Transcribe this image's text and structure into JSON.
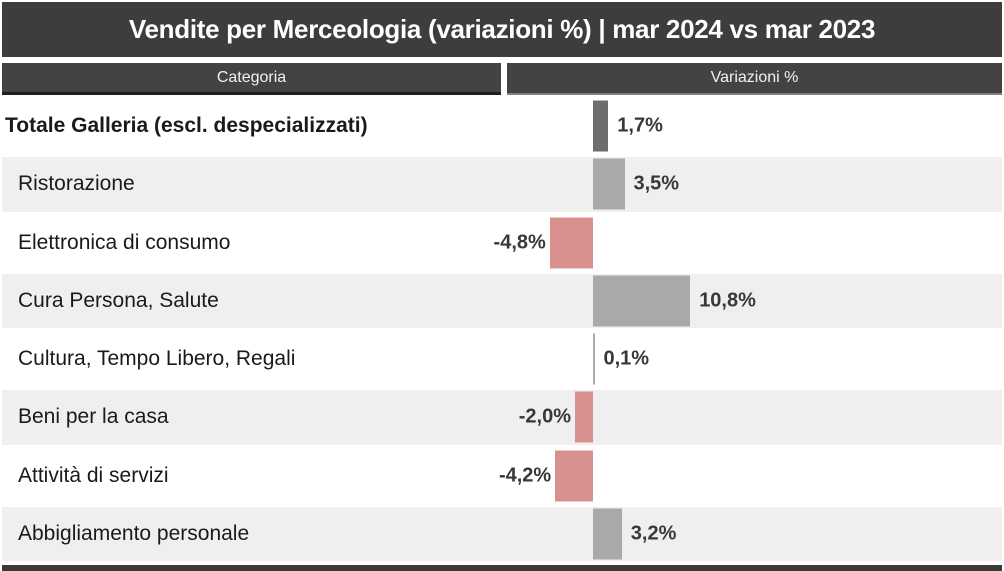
{
  "title": "Vendite per Merceologia (variazioni %) | mar 2024 vs mar 2023",
  "header": {
    "category": "Categoria",
    "value": "Variazioni %"
  },
  "colors": {
    "title_bg": "#3d3d3d",
    "header_bg": "#434343",
    "alt_row_bg": "#efefef",
    "bar_total": "#6d6d6d",
    "bar_positive": "#a9a9a9",
    "bar_negative": "#d9918f",
    "category_text": "#1a1a1a",
    "value_text": "#383838"
  },
  "chart_data": {
    "type": "bar",
    "orientation": "horizontal",
    "title": "Vendite per Merceologia (variazioni %) | mar 2024 vs mar 2023",
    "xlabel": "Variazioni %",
    "ylabel": "Categoria",
    "unit": "%",
    "baseline": 0,
    "grid": false,
    "legend": false,
    "categories": [
      "Totale Galleria (escl. despecializzati)",
      "Ristorazione",
      "Elettronica di consumo",
      "Cura Persona, Salute",
      "Cultura, Tempo Libero, Regali",
      "Beni per la casa",
      "Attività di servizi",
      "Abbigliamento personale"
    ],
    "values": [
      1.7,
      3.5,
      -4.8,
      10.8,
      0.1,
      -2.0,
      -4.2,
      3.2
    ],
    "value_labels": [
      "1,7%",
      "3,5%",
      "-4,8%",
      "10,8%",
      "0,1%",
      "-2,0%",
      "-4,2%",
      "3,2%"
    ],
    "rows": [
      {
        "label": "Totale Galleria (escl. despecializzati)",
        "value": 1.7,
        "display": "1,7%",
        "emphasis": true,
        "bar_color": "#6d6d6d"
      },
      {
        "label": "Ristorazione",
        "value": 3.5,
        "display": "3,5%",
        "emphasis": false,
        "bar_color": "#a9a9a9"
      },
      {
        "label": "Elettronica di consumo",
        "value": -4.8,
        "display": "-4,8%",
        "emphasis": false,
        "bar_color": "#d9918f"
      },
      {
        "label": "Cura Persona, Salute",
        "value": 10.8,
        "display": "10,8%",
        "emphasis": false,
        "bar_color": "#a9a9a9"
      },
      {
        "label": "Cultura, Tempo Libero, Regali",
        "value": 0.1,
        "display": "0,1%",
        "emphasis": false,
        "bar_color": "#a9a9a9"
      },
      {
        "label": "Beni per la casa",
        "value": -2.0,
        "display": "-2,0%",
        "emphasis": false,
        "bar_color": "#d9918f"
      },
      {
        "label": "Attività di servizi",
        "value": -4.2,
        "display": "-4,2%",
        "emphasis": false,
        "bar_color": "#d9918f"
      },
      {
        "label": "Abbigliamento personale",
        "value": 3.2,
        "display": "3,2%",
        "emphasis": false,
        "bar_color": "#a9a9a9"
      }
    ]
  }
}
